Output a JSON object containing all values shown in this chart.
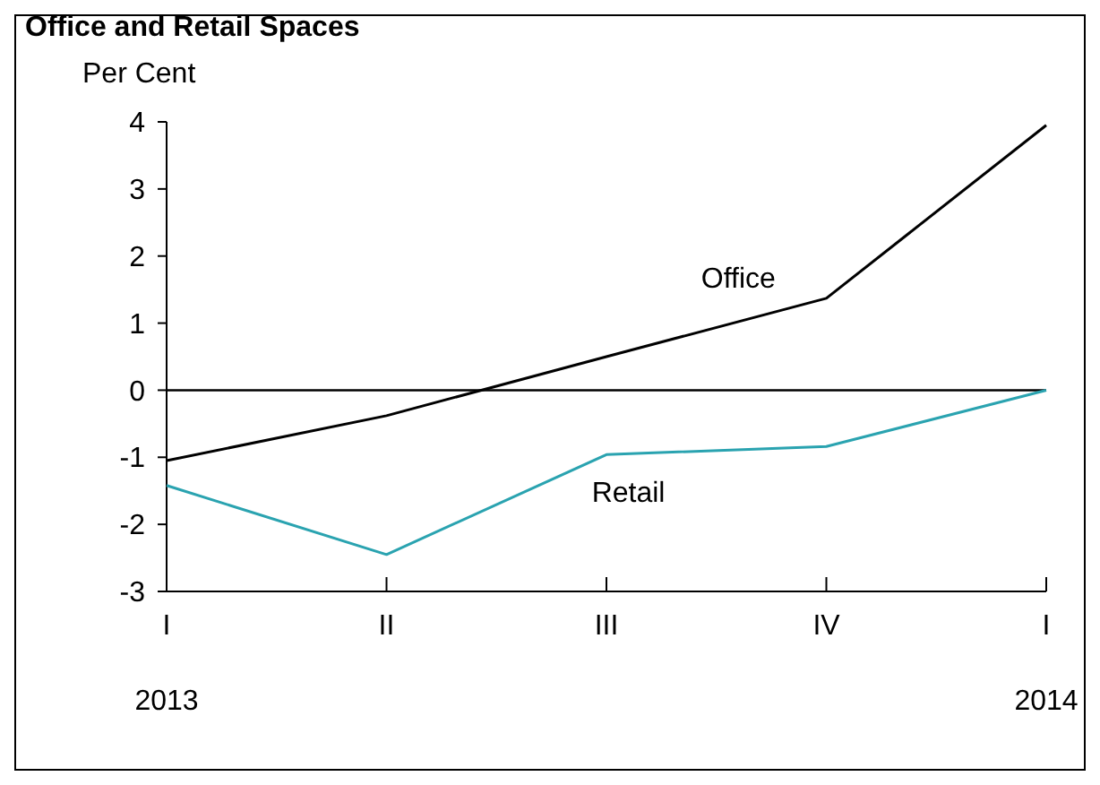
{
  "chart_data": {
    "type": "line",
    "title": "Office and Retail Spaces",
    "ylabel": "Per Cent",
    "categories": [
      "I",
      "II",
      "III",
      "IV",
      "I"
    ],
    "series": [
      {
        "name": "Office",
        "color": "#000000",
        "values": [
          -1.05,
          -0.38,
          0.5,
          1.37,
          3.95
        ]
      },
      {
        "name": "Retail",
        "color": "#2aa3b0",
        "values": [
          -1.42,
          -2.45,
          -0.96,
          -0.84,
          0
        ]
      }
    ],
    "ylim": [
      -3,
      4
    ],
    "yticks": [
      -3,
      -2,
      -1,
      0,
      1,
      2,
      3,
      4
    ],
    "ref_lines": [
      {
        "axis": "y",
        "value": 0,
        "color": "#000000"
      }
    ],
    "annotations": [
      "2013",
      "2014"
    ],
    "grid": false,
    "line_style": "solid"
  }
}
